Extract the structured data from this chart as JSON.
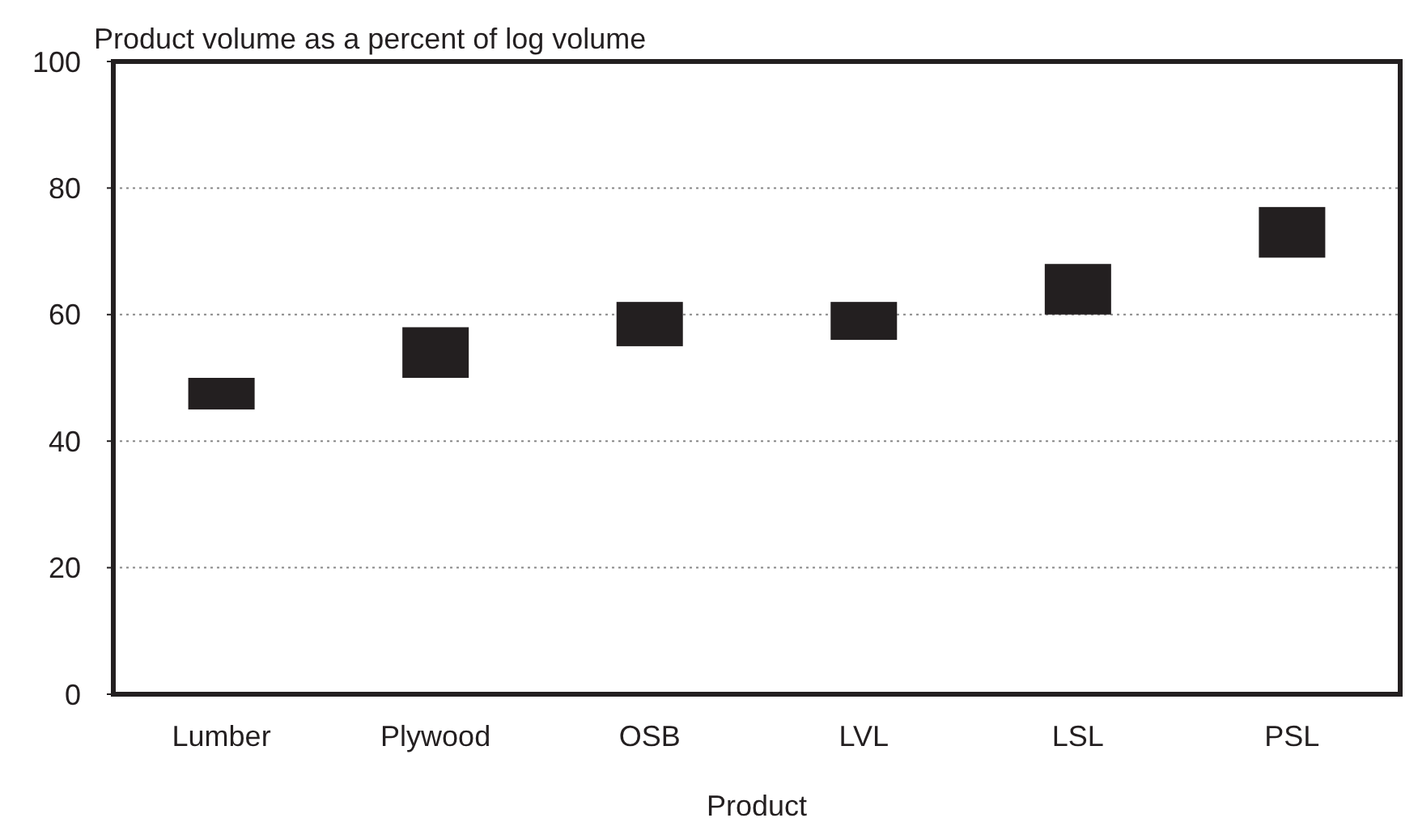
{
  "chart_data": {
    "type": "bar",
    "ylabel": "Product volume as a percent of log volume",
    "xlabel": "Product",
    "categories": [
      "Lumber",
      "Plywood",
      "OSB",
      "LVL",
      "LSL",
      "PSL"
    ],
    "base": [
      45,
      50,
      55,
      56,
      60,
      69
    ],
    "values": [
      5,
      8,
      7,
      6,
      8,
      8
    ],
    "color": "#231f20",
    "ylim": [
      0,
      100
    ],
    "yticks": [
      0,
      20,
      40,
      60,
      80,
      100
    ],
    "grid": "y"
  }
}
